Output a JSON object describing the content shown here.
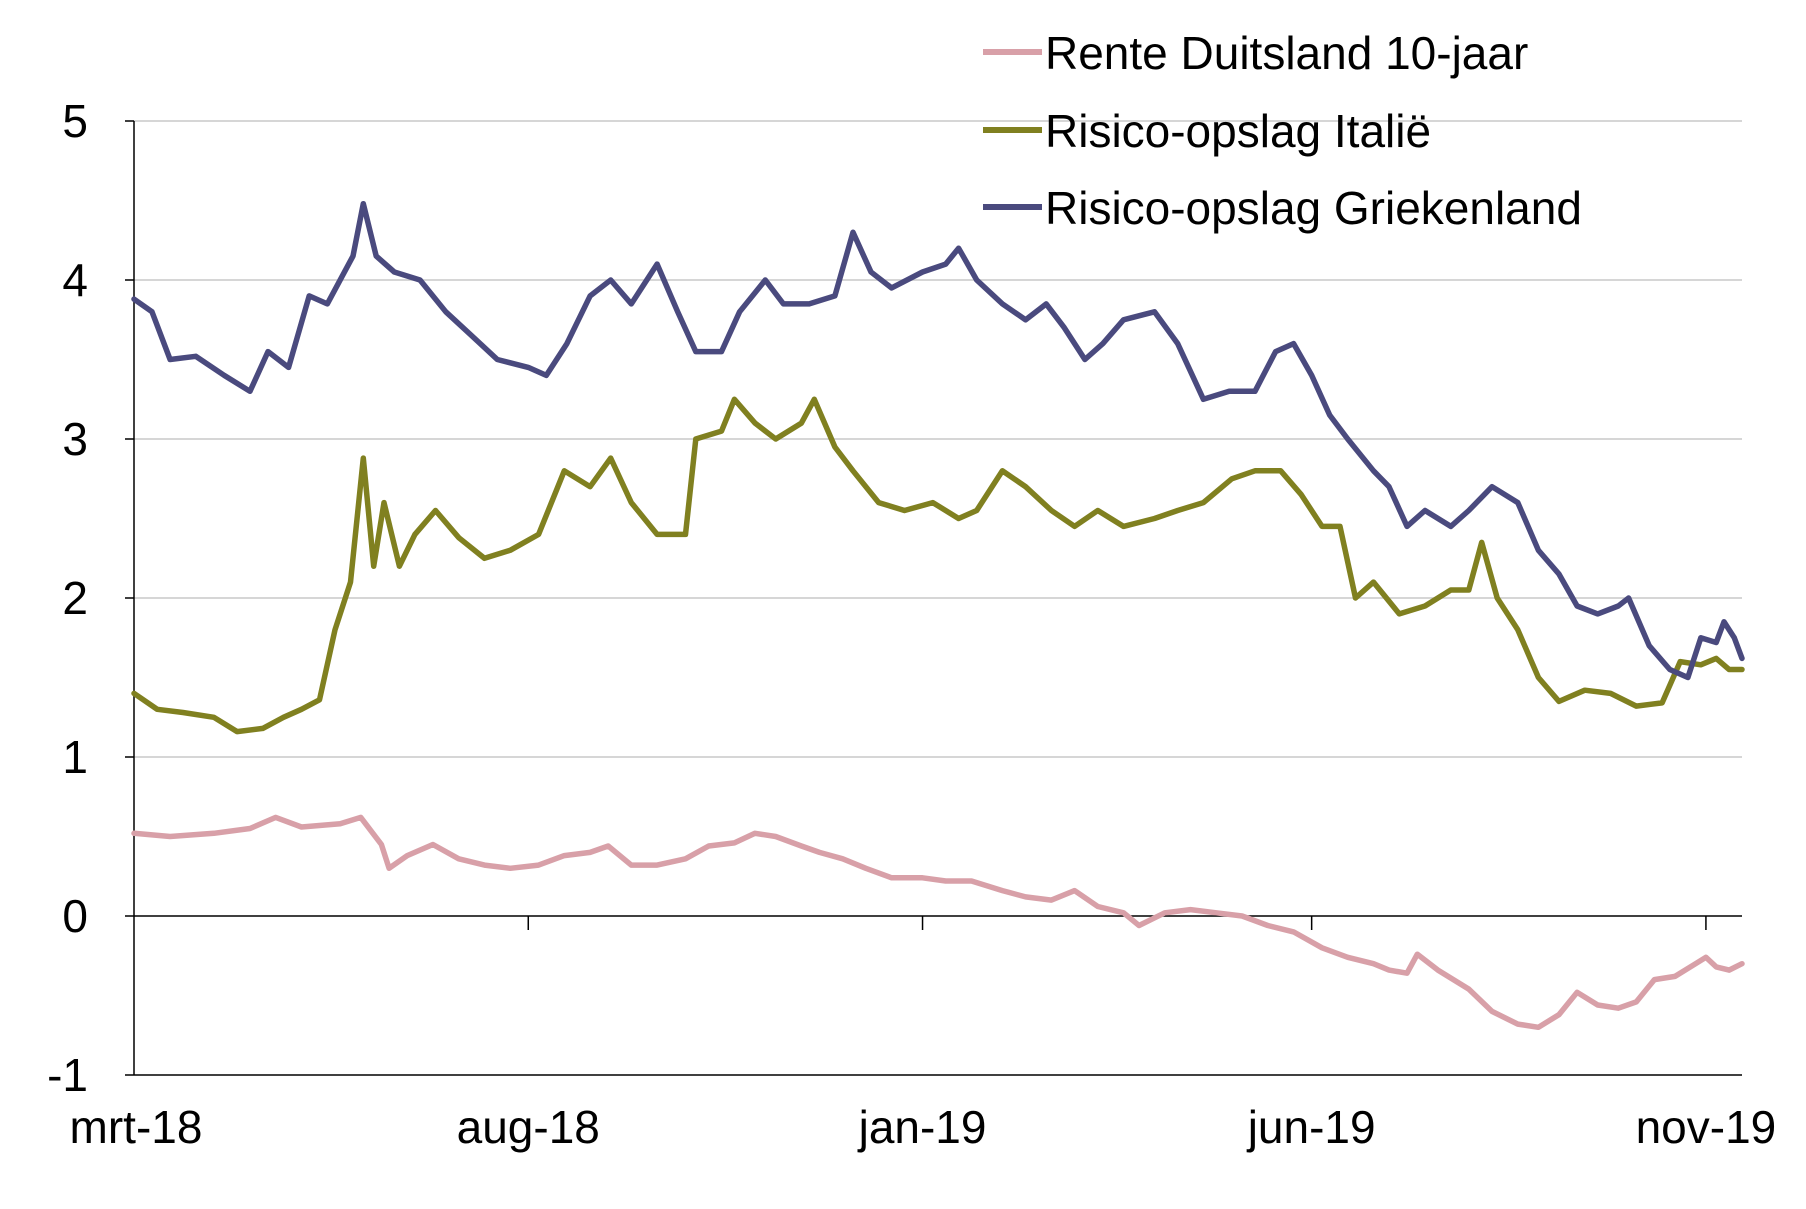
{
  "chart_data": {
    "type": "line",
    "title": "",
    "xlabel": "",
    "ylabel": "",
    "ylim": [
      -1,
      5
    ],
    "yticks": [
      -1,
      0,
      1,
      2,
      3,
      4,
      5
    ],
    "y_tick_labels": [
      "-1",
      "0",
      "1",
      "2",
      "3",
      "4",
      "5"
    ],
    "x_tick_labels": [
      "mrt-18",
      "aug-18",
      "jan-19",
      "jun-19",
      "nov-19"
    ],
    "x_ticks": [
      "2018-03-01",
      "2018-08-01",
      "2019-01-01",
      "2019-06-01",
      "2019-11-01"
    ],
    "xlim": [
      "2018-03-01",
      "2019-11-15"
    ],
    "grid": "horizontal",
    "legend_position": "top-right",
    "series": [
      {
        "name": "Rente Duitsland 10-jaar",
        "color": "#d8a0a8",
        "points": [
          [
            "2018-03-01",
            0.52
          ],
          [
            "2018-03-15",
            0.5
          ],
          [
            "2018-04-01",
            0.52
          ],
          [
            "2018-04-15",
            0.55
          ],
          [
            "2018-04-25",
            0.62
          ],
          [
            "2018-05-05",
            0.56
          ],
          [
            "2018-05-20",
            0.58
          ],
          [
            "2018-05-28",
            0.62
          ],
          [
            "2018-06-05",
            0.45
          ],
          [
            "2018-06-08",
            0.3
          ],
          [
            "2018-06-15",
            0.38
          ],
          [
            "2018-06-25",
            0.45
          ],
          [
            "2018-07-05",
            0.36
          ],
          [
            "2018-07-15",
            0.32
          ],
          [
            "2018-07-25",
            0.3
          ],
          [
            "2018-08-05",
            0.32
          ],
          [
            "2018-08-15",
            0.38
          ],
          [
            "2018-08-25",
            0.4
          ],
          [
            "2018-09-01",
            0.44
          ],
          [
            "2018-09-10",
            0.32
          ],
          [
            "2018-09-20",
            0.32
          ],
          [
            "2018-10-01",
            0.36
          ],
          [
            "2018-10-10",
            0.44
          ],
          [
            "2018-10-20",
            0.46
          ],
          [
            "2018-10-28",
            0.52
          ],
          [
            "2018-11-05",
            0.5
          ],
          [
            "2018-11-15",
            0.44
          ],
          [
            "2018-11-22",
            0.4
          ],
          [
            "2018-12-01",
            0.36
          ],
          [
            "2018-12-10",
            0.3
          ],
          [
            "2018-12-20",
            0.24
          ],
          [
            "2019-01-01",
            0.24
          ],
          [
            "2019-01-10",
            0.22
          ],
          [
            "2019-01-20",
            0.22
          ],
          [
            "2019-02-01",
            0.16
          ],
          [
            "2019-02-10",
            0.12
          ],
          [
            "2019-02-20",
            0.1
          ],
          [
            "2019-03-01",
            0.16
          ],
          [
            "2019-03-10",
            0.06
          ],
          [
            "2019-03-20",
            0.02
          ],
          [
            "2019-03-26",
            -0.06
          ],
          [
            "2019-04-05",
            0.02
          ],
          [
            "2019-04-15",
            0.04
          ],
          [
            "2019-04-25",
            0.02
          ],
          [
            "2019-05-05",
            0.0
          ],
          [
            "2019-05-15",
            -0.06
          ],
          [
            "2019-05-25",
            -0.1
          ],
          [
            "2019-06-05",
            -0.2
          ],
          [
            "2019-06-15",
            -0.26
          ],
          [
            "2019-06-25",
            -0.3
          ],
          [
            "2019-07-01",
            -0.34
          ],
          [
            "2019-07-08",
            -0.36
          ],
          [
            "2019-07-12",
            -0.24
          ],
          [
            "2019-07-20",
            -0.34
          ],
          [
            "2019-08-01",
            -0.46
          ],
          [
            "2019-08-10",
            -0.6
          ],
          [
            "2019-08-20",
            -0.68
          ],
          [
            "2019-08-28",
            -0.7
          ],
          [
            "2019-09-05",
            -0.62
          ],
          [
            "2019-09-12",
            -0.48
          ],
          [
            "2019-09-20",
            -0.56
          ],
          [
            "2019-09-28",
            -0.58
          ],
          [
            "2019-10-05",
            -0.54
          ],
          [
            "2019-10-12",
            -0.4
          ],
          [
            "2019-10-20",
            -0.38
          ],
          [
            "2019-10-28",
            -0.3
          ],
          [
            "2019-11-01",
            -0.26
          ],
          [
            "2019-11-05",
            -0.32
          ],
          [
            "2019-11-10",
            -0.34
          ],
          [
            "2019-11-15",
            -0.3
          ]
        ]
      },
      {
        "name": "Risico-opslag Italië",
        "color": "#808020",
        "points": [
          [
            "2018-03-01",
            1.4
          ],
          [
            "2018-03-10",
            1.3
          ],
          [
            "2018-03-20",
            1.28
          ],
          [
            "2018-04-01",
            1.25
          ],
          [
            "2018-04-10",
            1.16
          ],
          [
            "2018-04-20",
            1.18
          ],
          [
            "2018-04-28",
            1.25
          ],
          [
            "2018-05-05",
            1.3
          ],
          [
            "2018-05-12",
            1.36
          ],
          [
            "2018-05-18",
            1.8
          ],
          [
            "2018-05-24",
            2.1
          ],
          [
            "2018-05-29",
            2.88
          ],
          [
            "2018-06-02",
            2.2
          ],
          [
            "2018-06-06",
            2.6
          ],
          [
            "2018-06-12",
            2.2
          ],
          [
            "2018-06-18",
            2.4
          ],
          [
            "2018-06-26",
            2.55
          ],
          [
            "2018-07-05",
            2.38
          ],
          [
            "2018-07-15",
            2.25
          ],
          [
            "2018-07-25",
            2.3
          ],
          [
            "2018-08-05",
            2.4
          ],
          [
            "2018-08-15",
            2.8
          ],
          [
            "2018-08-25",
            2.7
          ],
          [
            "2018-09-02",
            2.88
          ],
          [
            "2018-09-10",
            2.6
          ],
          [
            "2018-09-20",
            2.4
          ],
          [
            "2018-10-01",
            2.4
          ],
          [
            "2018-10-05",
            3.0
          ],
          [
            "2018-10-15",
            3.05
          ],
          [
            "2018-10-20",
            3.25
          ],
          [
            "2018-10-28",
            3.1
          ],
          [
            "2018-11-05",
            3.0
          ],
          [
            "2018-11-15",
            3.1
          ],
          [
            "2018-11-20",
            3.25
          ],
          [
            "2018-11-28",
            2.95
          ],
          [
            "2018-12-05",
            2.8
          ],
          [
            "2018-12-15",
            2.6
          ],
          [
            "2018-12-25",
            2.55
          ],
          [
            "2019-01-05",
            2.6
          ],
          [
            "2019-01-15",
            2.5
          ],
          [
            "2019-01-22",
            2.55
          ],
          [
            "2019-02-01",
            2.8
          ],
          [
            "2019-02-10",
            2.7
          ],
          [
            "2019-02-20",
            2.55
          ],
          [
            "2019-03-01",
            2.45
          ],
          [
            "2019-03-10",
            2.55
          ],
          [
            "2019-03-20",
            2.45
          ],
          [
            "2019-04-01",
            2.5
          ],
          [
            "2019-04-10",
            2.55
          ],
          [
            "2019-04-20",
            2.6
          ],
          [
            "2019-05-01",
            2.75
          ],
          [
            "2019-05-10",
            2.8
          ],
          [
            "2019-05-20",
            2.8
          ],
          [
            "2019-05-28",
            2.65
          ],
          [
            "2019-06-05",
            2.45
          ],
          [
            "2019-06-12",
            2.45
          ],
          [
            "2019-06-18",
            2.0
          ],
          [
            "2019-06-25",
            2.1
          ],
          [
            "2019-07-05",
            1.9
          ],
          [
            "2019-07-15",
            1.95
          ],
          [
            "2019-07-25",
            2.05
          ],
          [
            "2019-08-01",
            2.05
          ],
          [
            "2019-08-06",
            2.35
          ],
          [
            "2019-08-12",
            2.0
          ],
          [
            "2019-08-20",
            1.8
          ],
          [
            "2019-08-28",
            1.5
          ],
          [
            "2019-09-05",
            1.35
          ],
          [
            "2019-09-15",
            1.42
          ],
          [
            "2019-09-25",
            1.4
          ],
          [
            "2019-10-05",
            1.32
          ],
          [
            "2019-10-15",
            1.34
          ],
          [
            "2019-10-22",
            1.6
          ],
          [
            "2019-10-30",
            1.58
          ],
          [
            "2019-11-05",
            1.62
          ],
          [
            "2019-11-10",
            1.55
          ],
          [
            "2019-11-15",
            1.55
          ]
        ]
      },
      {
        "name": "Risico-opslag Griekenland",
        "color": "#4a4a7e",
        "points": [
          [
            "2018-03-01",
            3.88
          ],
          [
            "2018-03-08",
            3.8
          ],
          [
            "2018-03-15",
            3.5
          ],
          [
            "2018-03-25",
            3.52
          ],
          [
            "2018-04-05",
            3.4
          ],
          [
            "2018-04-15",
            3.3
          ],
          [
            "2018-04-22",
            3.55
          ],
          [
            "2018-04-30",
            3.45
          ],
          [
            "2018-05-08",
            3.9
          ],
          [
            "2018-05-15",
            3.85
          ],
          [
            "2018-05-25",
            4.15
          ],
          [
            "2018-05-29",
            4.48
          ],
          [
            "2018-06-03",
            4.15
          ],
          [
            "2018-06-10",
            4.05
          ],
          [
            "2018-06-20",
            4.0
          ],
          [
            "2018-06-30",
            3.8
          ],
          [
            "2018-07-10",
            3.65
          ],
          [
            "2018-07-20",
            3.5
          ],
          [
            "2018-08-01",
            3.45
          ],
          [
            "2018-08-08",
            3.4
          ],
          [
            "2018-08-16",
            3.6
          ],
          [
            "2018-08-25",
            3.9
          ],
          [
            "2018-09-02",
            4.0
          ],
          [
            "2018-09-10",
            3.85
          ],
          [
            "2018-09-20",
            4.1
          ],
          [
            "2018-09-28",
            3.8
          ],
          [
            "2018-10-05",
            3.55
          ],
          [
            "2018-10-15",
            3.55
          ],
          [
            "2018-10-22",
            3.8
          ],
          [
            "2018-11-01",
            4.0
          ],
          [
            "2018-11-08",
            3.85
          ],
          [
            "2018-11-18",
            3.85
          ],
          [
            "2018-11-28",
            3.9
          ],
          [
            "2018-12-05",
            4.3
          ],
          [
            "2018-12-12",
            4.05
          ],
          [
            "2018-12-20",
            3.95
          ],
          [
            "2019-01-01",
            4.05
          ],
          [
            "2019-01-10",
            4.1
          ],
          [
            "2019-01-15",
            4.2
          ],
          [
            "2019-01-22",
            4.0
          ],
          [
            "2019-02-01",
            3.85
          ],
          [
            "2019-02-10",
            3.75
          ],
          [
            "2019-02-18",
            3.85
          ],
          [
            "2019-02-25",
            3.7
          ],
          [
            "2019-03-05",
            3.5
          ],
          [
            "2019-03-12",
            3.6
          ],
          [
            "2019-03-20",
            3.75
          ],
          [
            "2019-04-01",
            3.8
          ],
          [
            "2019-04-10",
            3.6
          ],
          [
            "2019-04-20",
            3.25
          ],
          [
            "2019-04-30",
            3.3
          ],
          [
            "2019-05-10",
            3.3
          ],
          [
            "2019-05-18",
            3.55
          ],
          [
            "2019-05-25",
            3.6
          ],
          [
            "2019-06-01",
            3.4
          ],
          [
            "2019-06-08",
            3.15
          ],
          [
            "2019-06-15",
            3.0
          ],
          [
            "2019-06-25",
            2.8
          ],
          [
            "2019-07-01",
            2.7
          ],
          [
            "2019-07-08",
            2.45
          ],
          [
            "2019-07-15",
            2.55
          ],
          [
            "2019-07-25",
            2.45
          ],
          [
            "2019-08-01",
            2.55
          ],
          [
            "2019-08-10",
            2.7
          ],
          [
            "2019-08-20",
            2.6
          ],
          [
            "2019-08-28",
            2.3
          ],
          [
            "2019-09-05",
            2.15
          ],
          [
            "2019-09-12",
            1.95
          ],
          [
            "2019-09-20",
            1.9
          ],
          [
            "2019-09-28",
            1.95
          ],
          [
            "2019-10-02",
            2.0
          ],
          [
            "2019-10-10",
            1.7
          ],
          [
            "2019-10-18",
            1.55
          ],
          [
            "2019-10-25",
            1.5
          ],
          [
            "2019-10-30",
            1.75
          ],
          [
            "2019-11-05",
            1.72
          ],
          [
            "2019-11-08",
            1.85
          ],
          [
            "2019-11-12",
            1.75
          ],
          [
            "2019-11-15",
            1.62
          ]
        ]
      }
    ]
  }
}
